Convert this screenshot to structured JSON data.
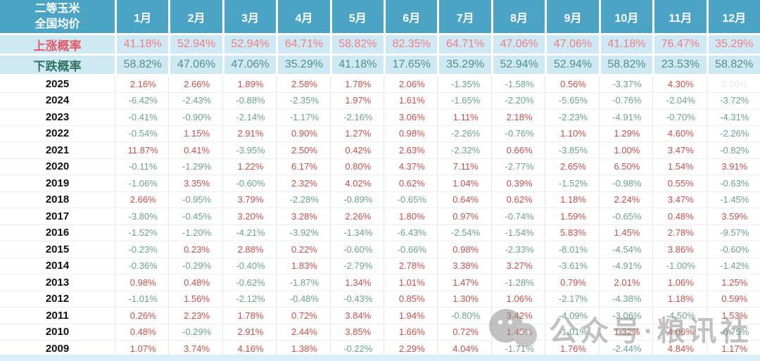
{
  "header": {
    "corner_line1": "二等玉米",
    "corner_line2": "全国均价"
  },
  "chart_data": {
    "type": "table",
    "title": "二等玉米全国均价",
    "months": [
      "1月",
      "2月",
      "3月",
      "4月",
      "5月",
      "6月",
      "7月",
      "8月",
      "9月",
      "10月",
      "11月",
      "12月"
    ],
    "probability_rows": [
      {
        "kind": "rise",
        "label": "上涨概率",
        "values": [
          "41.18%",
          "52.94%",
          "52.94%",
          "64.71%",
          "58.82%",
          "82.35%",
          "64.71%",
          "47.06%",
          "47.06%",
          "41.18%",
          "76.47%",
          "35.29%"
        ]
      },
      {
        "kind": "fall",
        "label": "下跌概率",
        "values": [
          "58.82%",
          "47.06%",
          "47.06%",
          "35.29%",
          "41.18%",
          "17.65%",
          "35.29%",
          "52.94%",
          "52.94%",
          "58.82%",
          "23.53%",
          "58.82%"
        ]
      }
    ],
    "year_rows": [
      {
        "year": "2025",
        "values": [
          "2.16%",
          "2.66%",
          "1.89%",
          "2.58%",
          "1.78%",
          "2.06%",
          "-1.35%",
          "-1.58%",
          "0.56%",
          "-3.37%",
          "4.30%",
          "0.00%"
        ]
      },
      {
        "year": "2024",
        "values": [
          "-6.42%",
          "-2.43%",
          "-0.88%",
          "-2.35%",
          "1.97%",
          "1.61%",
          "-1.65%",
          "-2.20%",
          "-5.65%",
          "-0.76%",
          "-2.04%",
          "-3.72%"
        ]
      },
      {
        "year": "2023",
        "values": [
          "-0.41%",
          "-0.90%",
          "-2.14%",
          "-1.17%",
          "-2.16%",
          "3.06%",
          "1.11%",
          "2.18%",
          "-2.23%",
          "-4.91%",
          "-0.70%",
          "-4.31%"
        ]
      },
      {
        "year": "2022",
        "values": [
          "-0.54%",
          "1.15%",
          "2.91%",
          "0.90%",
          "1.27%",
          "0.98%",
          "-2.26%",
          "-0.76%",
          "1.10%",
          "1.29%",
          "4.60%",
          "-2.26%"
        ]
      },
      {
        "year": "2021",
        "values": [
          "11.87%",
          "0.41%",
          "-3.95%",
          "2.50%",
          "0.42%",
          "2.63%",
          "-2.32%",
          "0.66%",
          "-3.85%",
          "1.00%",
          "3.47%",
          "-0.82%"
        ]
      },
      {
        "year": "2020",
        "values": [
          "-0.11%",
          "-1.29%",
          "1.22%",
          "6.17%",
          "0.80%",
          "4.37%",
          "7.11%",
          "-2.77%",
          "2.65%",
          "6.50%",
          "1.54%",
          "3.91%"
        ]
      },
      {
        "year": "2019",
        "values": [
          "-1.06%",
          "3.35%",
          "-0.60%",
          "2.32%",
          "4.02%",
          "0.62%",
          "1.04%",
          "0.39%",
          "-1.52%",
          "-0.98%",
          "0.55%",
          "-0.63%"
        ]
      },
      {
        "year": "2018",
        "values": [
          "2.66%",
          "-0.95%",
          "3.79%",
          "-2.28%",
          "-0.89%",
          "-0.65%",
          "0.64%",
          "0.62%",
          "1.18%",
          "2.24%",
          "3.47%",
          "-1.45%"
        ]
      },
      {
        "year": "2017",
        "values": [
          "-3.80%",
          "-0.45%",
          "3.20%",
          "3.28%",
          "2.26%",
          "1.80%",
          "0.97%",
          "-0.74%",
          "1.59%",
          "-0.65%",
          "0.48%",
          "3.59%"
        ]
      },
      {
        "year": "2016",
        "values": [
          "-1.52%",
          "-1.20%",
          "-4.21%",
          "-3.92%",
          "-1.34%",
          "-6.43%",
          "-2.54%",
          "-1.54%",
          "5.83%",
          "1.45%",
          "2.78%",
          "-9.57%"
        ]
      },
      {
        "year": "2015",
        "values": [
          "-0.23%",
          "0.23%",
          "2.88%",
          "0.22%",
          "-0.60%",
          "-0.66%",
          "0.98%",
          "-2.33%",
          "-8.01%",
          "-4.54%",
          "3.86%",
          "-0.60%"
        ]
      },
      {
        "year": "2014",
        "values": [
          "-0.36%",
          "-0.29%",
          "-0.40%",
          "1.83%",
          "-2.79%",
          "2.78%",
          "3.38%",
          "3.27%",
          "-3.61%",
          "-4.91%",
          "-1.00%",
          "-1.42%"
        ]
      },
      {
        "year": "2013",
        "values": [
          "0.98%",
          "0.48%",
          "-0.62%",
          "-1.87%",
          "1.34%",
          "1.01%",
          "1.47%",
          "-1.28%",
          "0.79%",
          "2.01%",
          "1.06%",
          "1.25%"
        ]
      },
      {
        "year": "2012",
        "values": [
          "-1.01%",
          "1.56%",
          "-2.12%",
          "-0.48%",
          "-0.43%",
          "0.85%",
          "1.30%",
          "1.06%",
          "-2.17%",
          "-4.38%",
          "1.18%",
          "0.59%"
        ]
      },
      {
        "year": "2011",
        "values": [
          "0.26%",
          "2.23%",
          "1.78%",
          "0.72%",
          "3.84%",
          "1.94%",
          "-0.80%",
          "3.42%",
          "-4.09%",
          "-3.06%",
          "-4.50%",
          "1.53%"
        ]
      },
      {
        "year": "2010",
        "values": [
          "0.48%",
          "-0.29%",
          "2.91%",
          "2.44%",
          "3.85%",
          "1.66%",
          "0.72%",
          "1.45%",
          "-1.01%",
          "1.32%",
          "4.06%",
          "-0.75%"
        ]
      },
      {
        "year": "2009",
        "values": [
          "1.07%",
          "3.74%",
          "4.16%",
          "1.38%",
          "-0.22%",
          "2.29%",
          "4.04%",
          "-1.71%",
          "1.76%",
          "-2.44%",
          "4.84%",
          "1.17%"
        ]
      }
    ]
  },
  "watermark": {
    "icon": "wechat-icon",
    "text": "公众号·粮讯社"
  },
  "colors": {
    "header_bg": "#4ba4c4",
    "prob_row_bg": "#cfe9f4",
    "rise_label": "#e25a68",
    "rise_value": "#ee7e89",
    "fall_label": "#2f7463",
    "fall_value": "#4f9183",
    "positive_value": "#c9504a",
    "negative_value": "#6ba193",
    "zero_value": "#eae4e4"
  }
}
